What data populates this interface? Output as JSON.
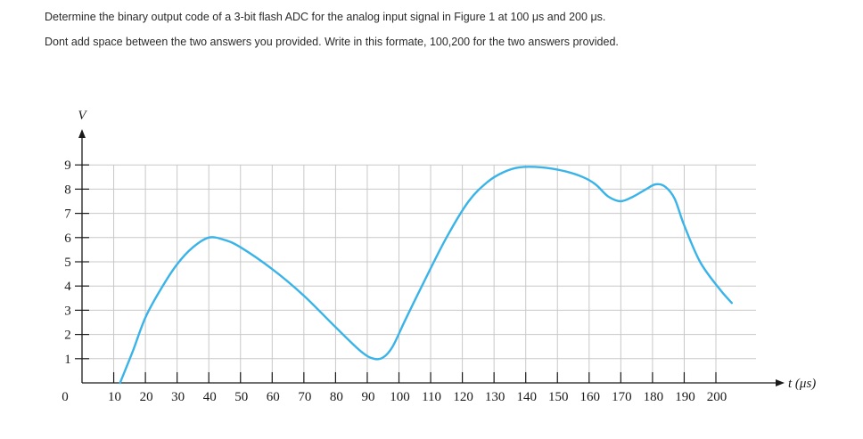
{
  "question": {
    "line1": "Determine the binary output code of a  3-bit flash ADC  for the analog input signal in Figure 1 at 100 μs and 200 μs.",
    "line2": "Dont add space between the two answers you provided. Write in this formate, 100,200 for the two answers provided."
  },
  "chart_data": {
    "type": "line",
    "title": "",
    "xlabel": "t (μs)",
    "ylabel": "V",
    "origin_label": "0",
    "xlim": [
      0,
      200
    ],
    "ylim": [
      0,
      9
    ],
    "grid": true,
    "x_ticks": [
      10,
      20,
      30,
      40,
      50,
      60,
      70,
      80,
      90,
      100,
      110,
      120,
      130,
      140,
      150,
      160,
      170,
      180,
      190,
      200
    ],
    "y_ticks": [
      1,
      2,
      3,
      4,
      5,
      6,
      7,
      8,
      9
    ],
    "colors": {
      "curve": "#3ab4e8",
      "grid": "#c8c8c8",
      "axis": "#1a1a1a"
    },
    "series": [
      {
        "x": [
          12,
          16,
          20,
          25,
          30,
          35,
          40,
          45,
          50,
          60,
          70,
          80,
          88,
          92,
          95,
          98,
          102,
          108,
          115,
          122,
          128,
          133,
          138,
          145,
          152,
          158,
          162,
          166,
          170,
          174,
          178,
          181,
          184,
          187,
          190,
          195,
          201,
          205
        ],
        "y": [
          0,
          1.3,
          2.7,
          3.9,
          4.9,
          5.6,
          6.0,
          5.9,
          5.6,
          4.7,
          3.6,
          2.3,
          1.3,
          1.0,
          1.05,
          1.5,
          2.6,
          4.2,
          6.0,
          7.5,
          8.3,
          8.7,
          8.9,
          8.9,
          8.75,
          8.5,
          8.2,
          7.7,
          7.5,
          7.7,
          8.0,
          8.2,
          8.1,
          7.6,
          6.5,
          5.0,
          3.9,
          3.3
        ]
      }
    ]
  }
}
